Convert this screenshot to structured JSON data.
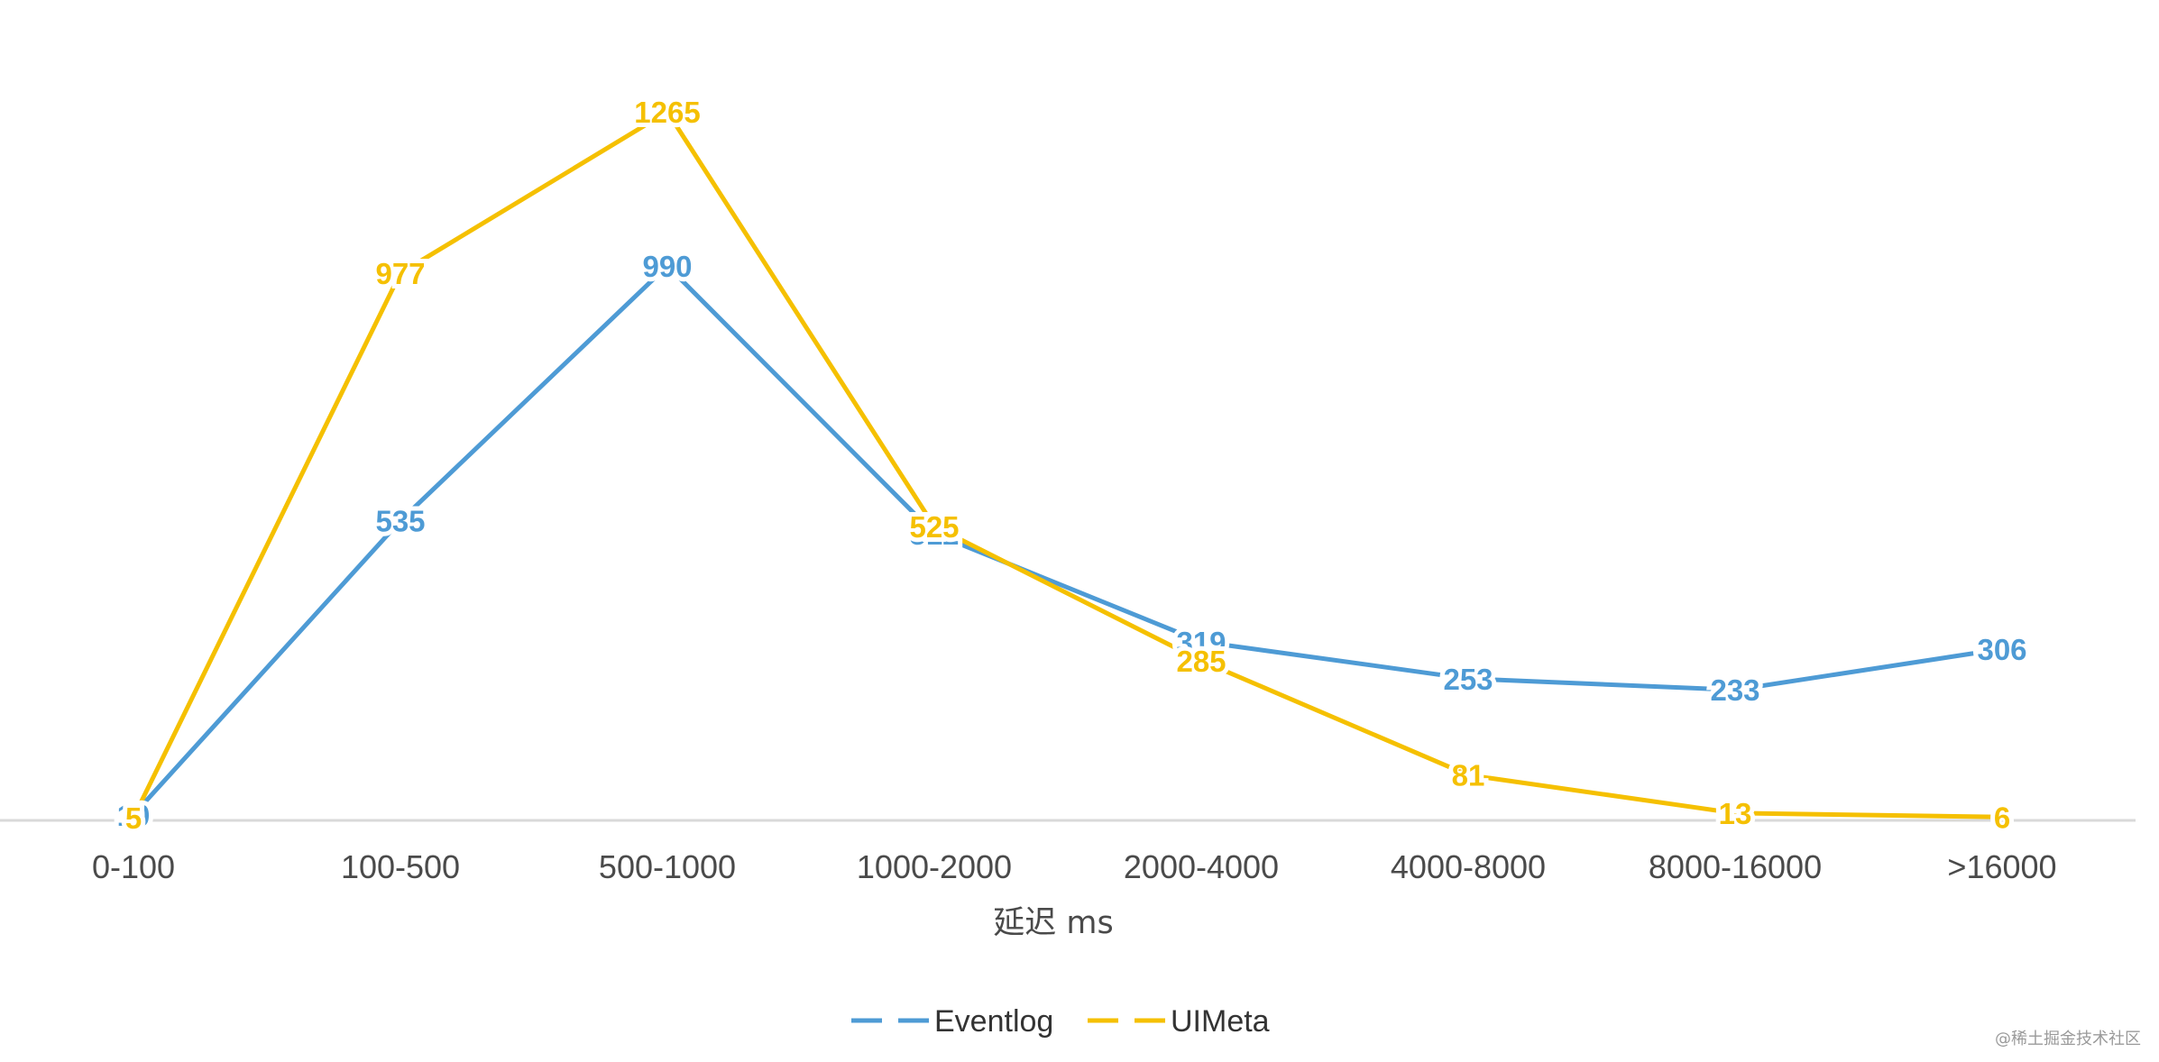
{
  "chart_data": {
    "type": "line",
    "title": "",
    "xlabel": "延迟 ms",
    "ylabel": "",
    "categories": [
      "0-100",
      "100-500",
      "500-1000",
      "1000-2000",
      "2000-4000",
      "4000-8000",
      "8000-16000",
      ">16000"
    ],
    "ylim": [
      0,
      1350
    ],
    "grid": false,
    "legend": "bottom",
    "series": [
      {
        "name": "Eventlog",
        "color": "#4E9BD5",
        "values": [
          10,
          535,
          990,
          512,
          319,
          253,
          233,
          306
        ]
      },
      {
        "name": "UIMeta",
        "color": "#F5C000",
        "values": [
          5,
          977,
          1265,
          525,
          285,
          81,
          13,
          6
        ]
      }
    ]
  },
  "watermark": "@稀土掘金技术社区",
  "colors": {
    "axis": "#d9d9d9",
    "tick_text": "#4a4a4a"
  }
}
